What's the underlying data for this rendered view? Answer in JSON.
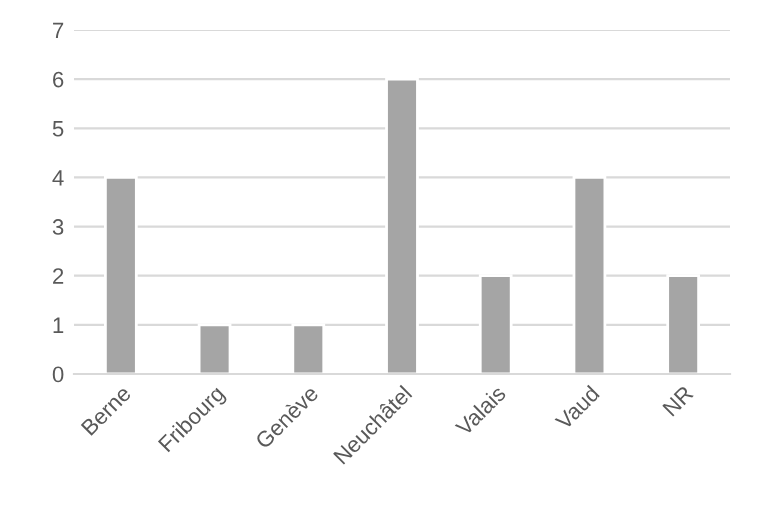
{
  "chart_data": {
    "type": "bar",
    "categories": [
      "Berne",
      "Fribourg",
      "Genève",
      "Neuchâtel",
      "Valais",
      "Vaud",
      "NR"
    ],
    "values": [
      4,
      1,
      1,
      6,
      2,
      4,
      2
    ],
    "color": "#a5a5a5",
    "ylim": [
      0,
      7
    ],
    "yticks": [
      0,
      1,
      2,
      3,
      4,
      5,
      6,
      7
    ],
    "grid": "y"
  }
}
